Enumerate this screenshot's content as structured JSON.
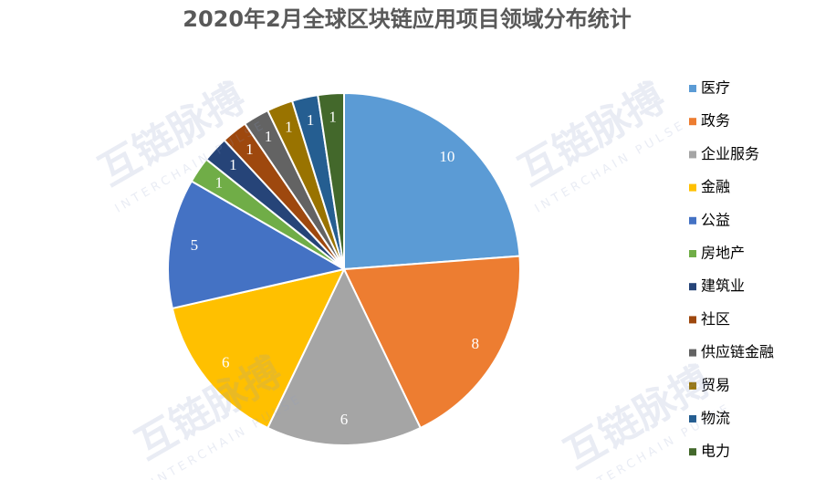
{
  "chart_data": {
    "type": "pie",
    "title": "2020年2月全球区块链应用项目领域分布统计",
    "categories": [
      "医疗",
      "政务",
      "企业服务",
      "金融",
      "公益",
      "房地产",
      "建筑业",
      "社区",
      "供应链金融",
      "贸易",
      "物流",
      "电力"
    ],
    "values": [
      10,
      8,
      6,
      6,
      5,
      1,
      1,
      1,
      1,
      1,
      1,
      1
    ],
    "colors": [
      "#5b9bd5",
      "#ed7d31",
      "#a5a5a5",
      "#ffc000",
      "#4472c4",
      "#70ad47",
      "#264478",
      "#9e480e",
      "#636363",
      "#997300",
      "#255e91",
      "#43682b"
    ],
    "legend": "right"
  },
  "watermark": {
    "title": "互链脉搏",
    "subtitle": "INTERCHAIN PULSE"
  }
}
